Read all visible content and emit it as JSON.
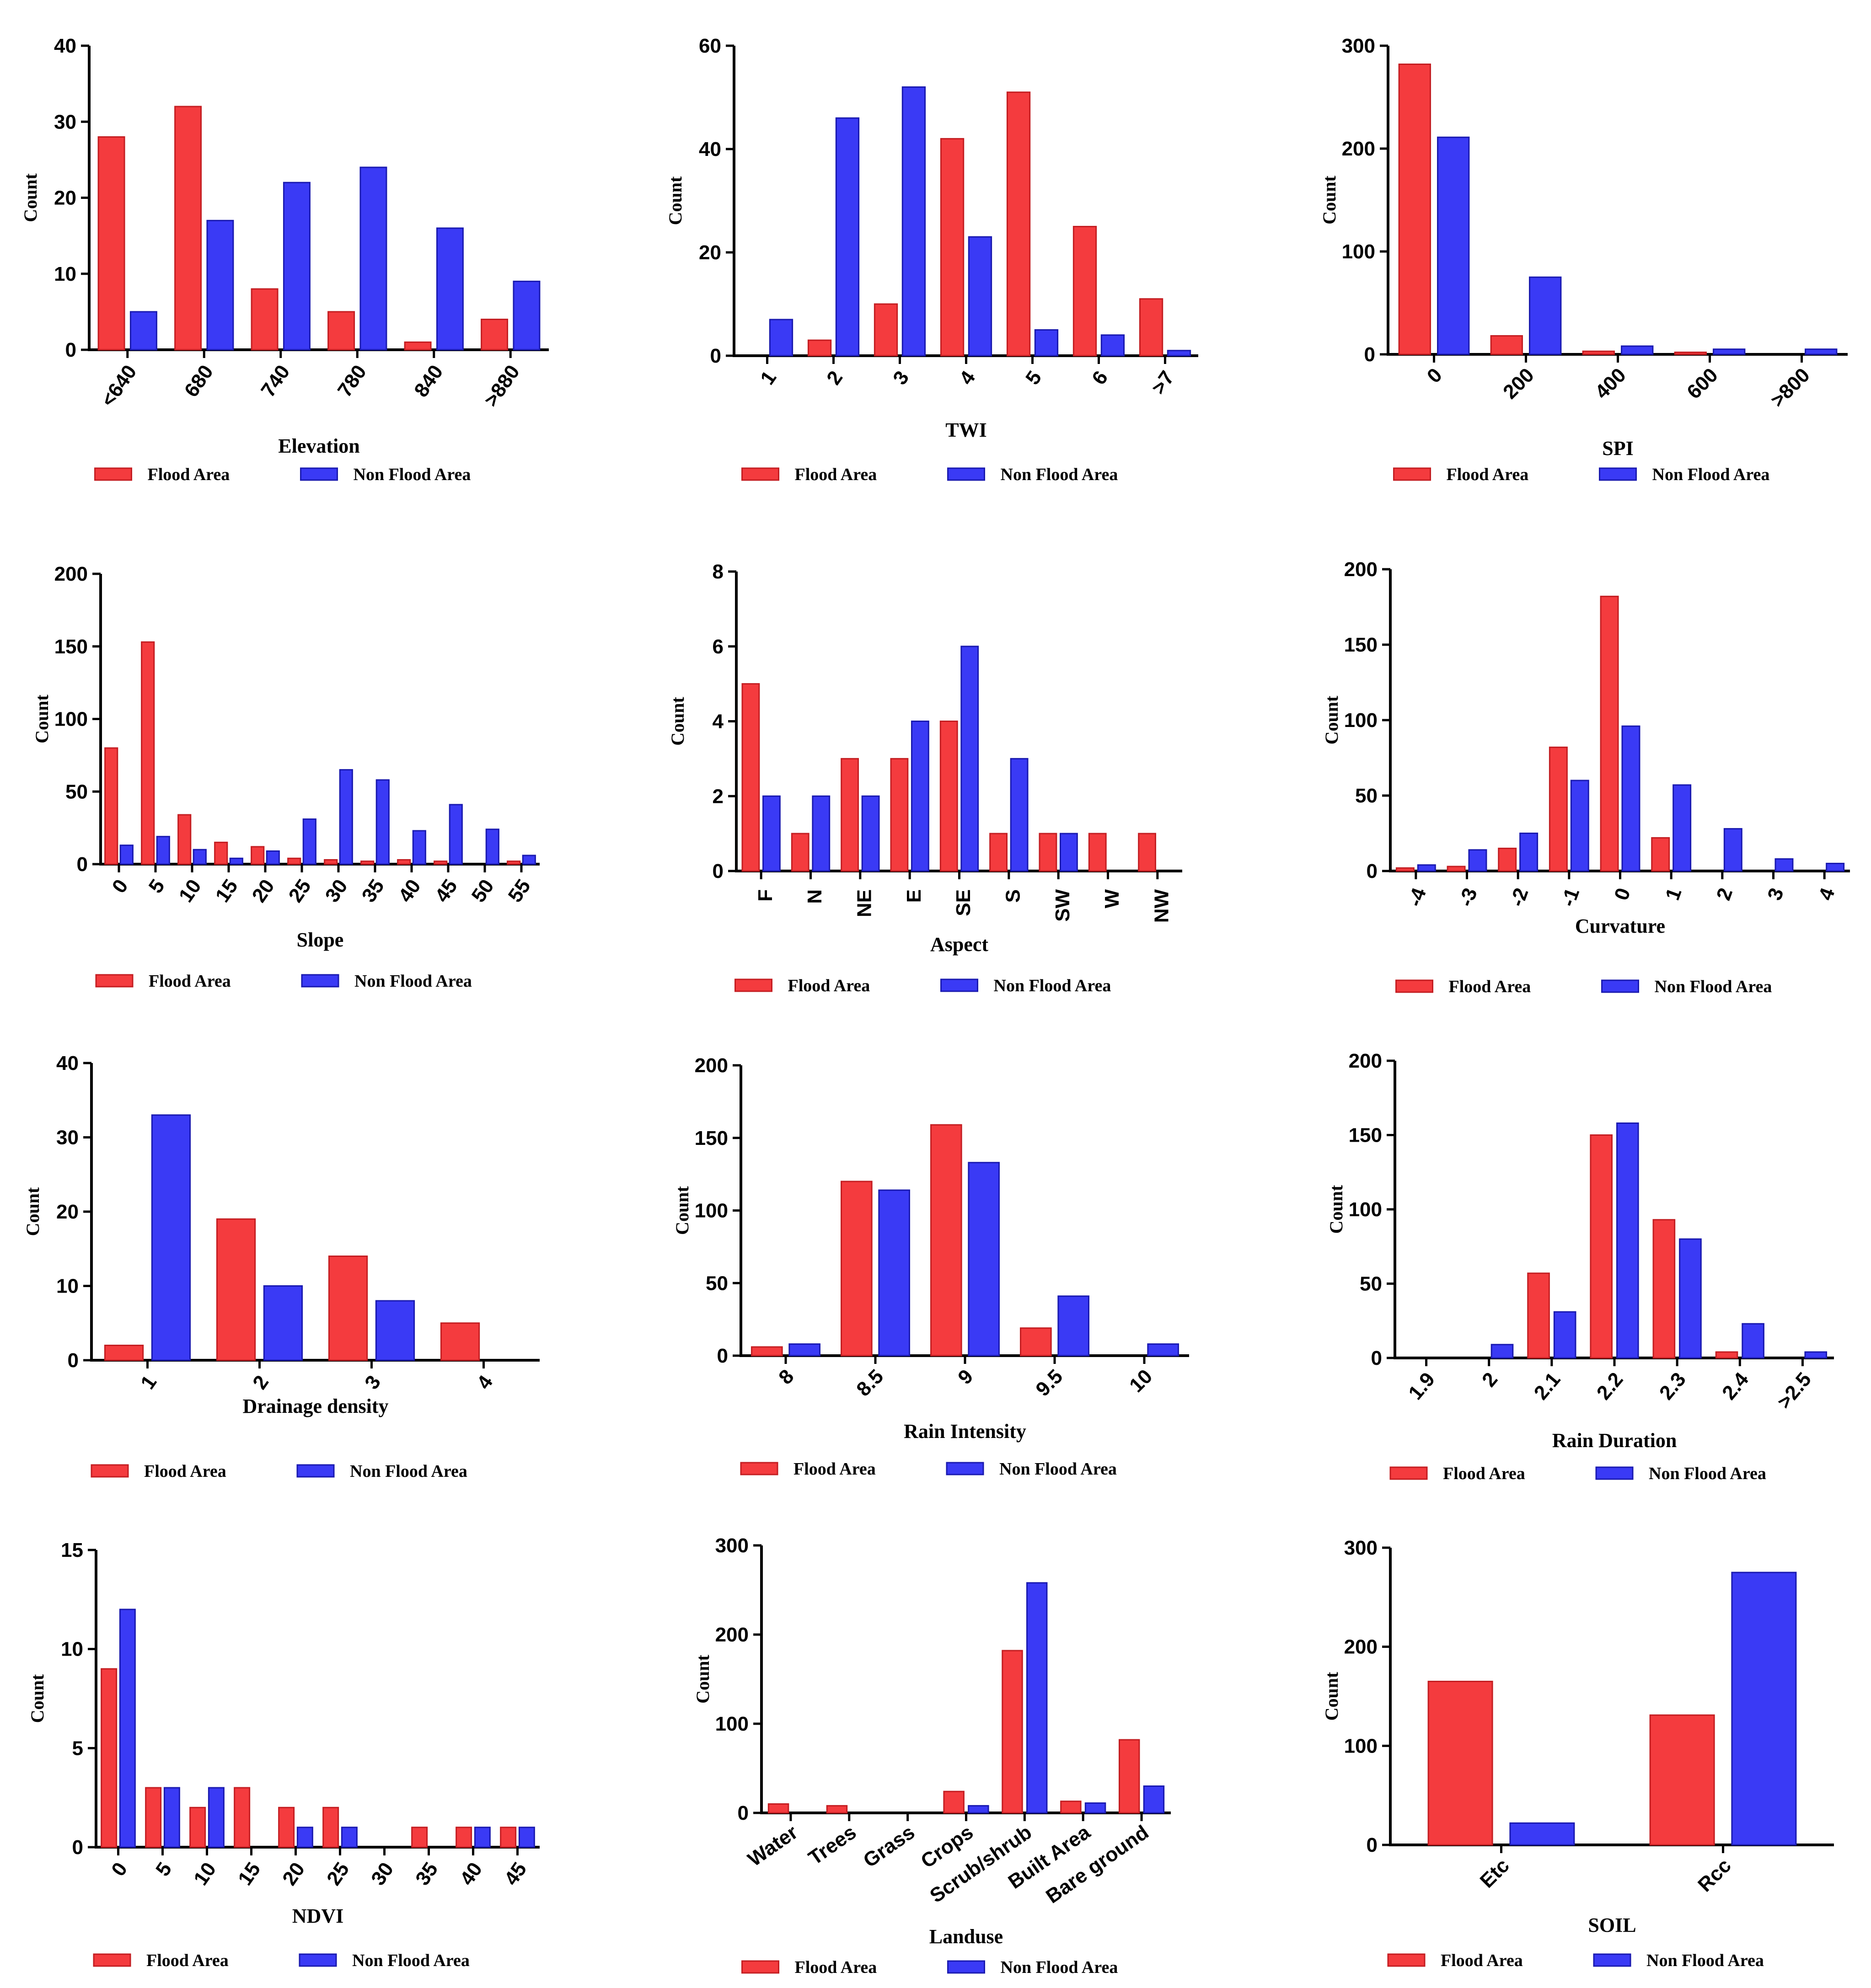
{
  "colors": {
    "flood": "#f43b3e",
    "flood_edge": "#c41e22",
    "nonflood": "#3a3af5",
    "nonflood_edge": "#1a1ab0"
  },
  "chart_data": [
    {
      "id": "elevation",
      "type": "bar",
      "xlabel": "Elevation",
      "ylabel": "Count",
      "ylim": [
        0,
        40
      ],
      "yticks": [
        0,
        10,
        20,
        30,
        40
      ],
      "categories": [
        "<640",
        "680",
        "740",
        "780",
        "840",
        ">880"
      ],
      "series": [
        {
          "name": "Flood Area",
          "values": [
            28,
            32,
            8,
            5,
            1,
            4
          ]
        },
        {
          "name": "Non Flood Area",
          "values": [
            5,
            17,
            22,
            24,
            16,
            9
          ]
        }
      ],
      "legend": [
        "Flood Area",
        "Non Flood Area"
      ]
    },
    {
      "id": "twi",
      "type": "bar",
      "xlabel": "TWI",
      "ylabel": "Count",
      "ylim": [
        0,
        60
      ],
      "yticks": [
        0,
        20,
        40,
        60
      ],
      "categories": [
        "1",
        "2",
        "3",
        "4",
        "5",
        "6",
        ">7"
      ],
      "series": [
        {
          "name": "Flood Area",
          "values": [
            0,
            3,
            10,
            42,
            51,
            25,
            11
          ]
        },
        {
          "name": "Non Flood Area",
          "values": [
            7,
            46,
            52,
            23,
            5,
            4,
            1
          ]
        }
      ],
      "legend": [
        "Flood Area",
        "Non Flood Area"
      ]
    },
    {
      "id": "spi",
      "type": "bar",
      "xlabel": "SPI",
      "ylabel": "Count",
      "ylim": [
        0,
        300
      ],
      "yticks": [
        0,
        100,
        200,
        300
      ],
      "categories": [
        "0",
        "200",
        "400",
        "600",
        ">800"
      ],
      "series": [
        {
          "name": "Flood Area",
          "values": [
            282,
            18,
            3,
            2,
            0
          ]
        },
        {
          "name": "Non Flood Area",
          "values": [
            211,
            75,
            8,
            5,
            5
          ]
        }
      ],
      "legend": [
        "Flood Area",
        "Non Flood Area"
      ]
    },
    {
      "id": "slope",
      "type": "bar",
      "xlabel": "Slope",
      "ylabel": "Count",
      "ylim": [
        0,
        200
      ],
      "yticks": [
        0,
        50,
        100,
        150,
        200
      ],
      "categories": [
        "0",
        "5",
        "10",
        "15",
        "20",
        "25",
        "30",
        "35",
        "40",
        "45",
        "50",
        "55"
      ],
      "series": [
        {
          "name": "Flood Area",
          "values": [
            80,
            153,
            34,
            15,
            12,
            4,
            3,
            2,
            3,
            2,
            0,
            2
          ]
        },
        {
          "name": "Non Flood Area",
          "values": [
            13,
            19,
            10,
            4,
            9,
            31,
            65,
            58,
            23,
            41,
            24,
            6
          ]
        }
      ],
      "legend": [
        "Flood Area",
        "Non Flood Area"
      ]
    },
    {
      "id": "aspect",
      "type": "bar",
      "xlabel": "Aspect",
      "ylabel": "Count",
      "ylim": [
        0,
        8
      ],
      "yticks": [
        0,
        2,
        4,
        6,
        8
      ],
      "categories": [
        "F",
        "N",
        "NE",
        "E",
        "SE",
        "S",
        "SW",
        "W",
        "NW"
      ],
      "series": [
        {
          "name": "Flood Area",
          "values": [
            5,
            1,
            3,
            3,
            4,
            1,
            1,
            1,
            1
          ]
        },
        {
          "name": "Non Flood Area",
          "values": [
            2,
            2,
            2,
            4,
            6,
            3,
            1,
            0,
            0
          ]
        }
      ],
      "legend": [
        "Flood Area",
        "Non Flood Area"
      ]
    },
    {
      "id": "curvature",
      "type": "bar",
      "xlabel": "Curvature",
      "ylabel": "Count",
      "ylim": [
        0,
        200
      ],
      "yticks": [
        0,
        50,
        100,
        150,
        200
      ],
      "categories": [
        "-4",
        "-3",
        "-2",
        "-1",
        "0",
        "1",
        "2",
        "3",
        "4"
      ],
      "series": [
        {
          "name": "Flood Area",
          "values": [
            2,
            3,
            15,
            82,
            182,
            22,
            0,
            0,
            0
          ]
        },
        {
          "name": "Non Flood Area",
          "values": [
            4,
            14,
            25,
            60,
            96,
            57,
            28,
            8,
            5
          ]
        }
      ],
      "legend": [
        "Flood Area",
        "Non Flood Area"
      ]
    },
    {
      "id": "drainage",
      "type": "bar",
      "xlabel": "Drainage density",
      "ylabel": "Count",
      "ylim": [
        0,
        40
      ],
      "yticks": [
        0,
        10,
        20,
        30,
        40
      ],
      "categories": [
        "1",
        "2",
        "3",
        "4"
      ],
      "series": [
        {
          "name": "Flood Area",
          "values": [
            2,
            19,
            14,
            5
          ]
        },
        {
          "name": "Non Flood Area",
          "values": [
            33,
            10,
            8,
            0
          ]
        }
      ],
      "legend": [
        "Flood Area",
        "Non Flood Area"
      ]
    },
    {
      "id": "rain-intensity",
      "type": "bar",
      "xlabel": "Rain Intensity",
      "ylabel": "Count",
      "ylim": [
        0,
        200
      ],
      "yticks": [
        0,
        50,
        100,
        150,
        200
      ],
      "categories": [
        "8",
        "8.5",
        "9",
        "9.5",
        "10"
      ],
      "series": [
        {
          "name": "Flood Area",
          "values": [
            6,
            120,
            159,
            19,
            0
          ]
        },
        {
          "name": "Non Flood Area",
          "values": [
            8,
            114,
            133,
            41,
            8
          ]
        }
      ],
      "legend": [
        "Flood Area",
        "Non Flood Area"
      ]
    },
    {
      "id": "rain-duration",
      "type": "bar",
      "xlabel": "Rain Duration",
      "ylabel": "Count",
      "ylim": [
        0,
        200
      ],
      "yticks": [
        0,
        50,
        100,
        150,
        200
      ],
      "categories": [
        "1.9",
        "2",
        "2.1",
        "2.2",
        "2.3",
        "2.4",
        ">2.5"
      ],
      "series": [
        {
          "name": "Flood Area",
          "values": [
            0,
            0,
            57,
            150,
            93,
            4,
            0
          ]
        },
        {
          "name": "Non Flood Area",
          "values": [
            0,
            9,
            31,
            158,
            80,
            23,
            4
          ]
        }
      ],
      "legend": [
        "Flood Area",
        "Non Flood Area"
      ]
    },
    {
      "id": "ndvi",
      "type": "bar",
      "xlabel": "NDVI",
      "ylabel": "Count",
      "ylim": [
        0,
        15
      ],
      "yticks": [
        0,
        5,
        10,
        15
      ],
      "categories": [
        "0",
        "5",
        "10",
        "15",
        "20",
        "25",
        "30",
        "35",
        "40",
        "45"
      ],
      "series": [
        {
          "name": "Flood Area",
          "values": [
            9,
            3,
            2,
            3,
            2,
            2,
            0,
            1,
            1,
            1
          ]
        },
        {
          "name": "Non Flood Area",
          "values": [
            12,
            3,
            3,
            0,
            1,
            1,
            0,
            0,
            1,
            1
          ]
        }
      ],
      "legend": [
        "Flood Area",
        "Non Flood Area"
      ]
    },
    {
      "id": "landuse",
      "type": "bar",
      "xlabel": "Landuse",
      "ylabel": "Count",
      "ylim": [
        0,
        300
      ],
      "yticks": [
        0,
        100,
        200,
        300
      ],
      "categories": [
        "Water",
        "Trees",
        "Grass",
        "Crops",
        "Scrub/shrub",
        "Built Area",
        "Bare ground"
      ],
      "series": [
        {
          "name": "Flood Area",
          "values": [
            10,
            8,
            0,
            24,
            182,
            13,
            82
          ]
        },
        {
          "name": "Non Flood Area",
          "values": [
            0,
            0,
            0,
            8,
            258,
            11,
            30
          ]
        }
      ],
      "legend": [
        "Flood Area",
        "Non Flood Area"
      ]
    },
    {
      "id": "soil",
      "type": "bar",
      "xlabel": "SOIL",
      "ylabel": "Count",
      "ylim": [
        0,
        300
      ],
      "yticks": [
        0,
        100,
        200,
        300
      ],
      "categories": [
        "Etc",
        "Rcc"
      ],
      "series": [
        {
          "name": "Flood Area",
          "values": [
            165,
            131
          ]
        },
        {
          "name": "Non Flood Area",
          "values": [
            22,
            275
          ]
        }
      ],
      "legend": [
        "Flood Area",
        "Non Flood Area"
      ]
    }
  ]
}
